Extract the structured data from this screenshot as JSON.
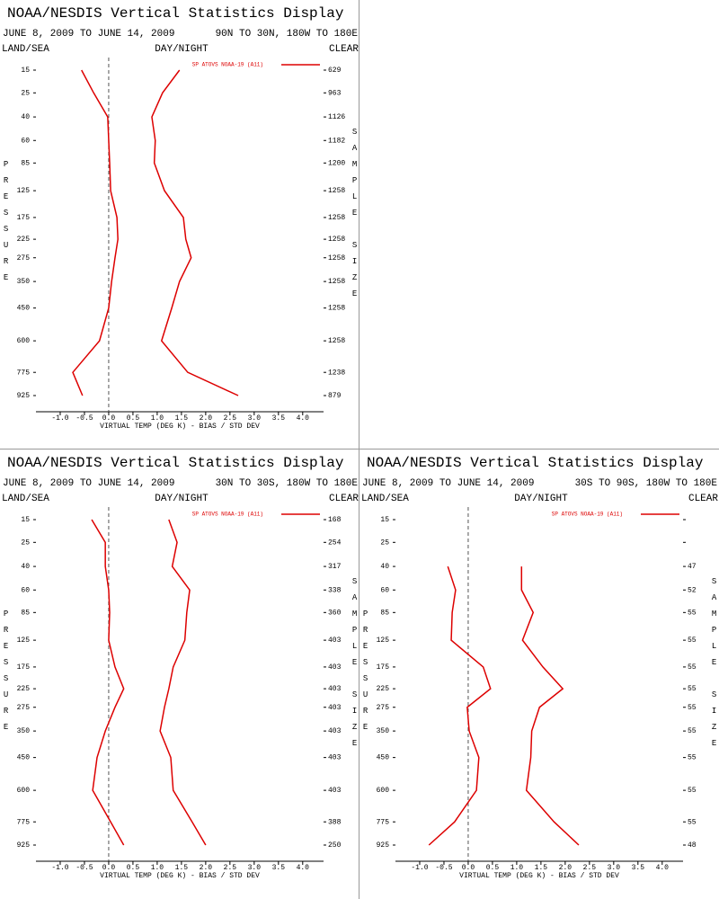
{
  "chart_data": [
    {
      "type": "line",
      "title": "NOAA/NESDIS Vertical Statistics Display",
      "subtitle": "JUNE 8, 2009 TO JUNE 14, 2009",
      "region": "90N TO 30N, 180W TO 180E",
      "land_sea": "LAND/SEA",
      "day_night": "DAY/NIGHT",
      "clear": "CLEAR",
      "ylabel": "PRESSURE",
      "y2label": "SAMPLE SIZE",
      "xlabel": "VIRTUAL TEMP (DEG K) - BIAS / STD DEV",
      "legend": "upper right",
      "y": [
        15,
        25,
        40,
        60,
        85,
        125,
        175,
        225,
        275,
        350,
        450,
        600,
        775,
        925
      ],
      "sample_size": [
        629,
        963,
        1126,
        1182,
        1200,
        1258,
        1258,
        1258,
        1258,
        1258,
        1258,
        1258,
        1238,
        879
      ],
      "series": [
        {
          "name": "SP ATOVS NOAA-19 (A11)",
          "color": "#dd0000",
          "values": [
            -0.56,
            -0.31,
            -0.02,
            0.0,
            0.02,
            0.04,
            0.17,
            0.19,
            0.13,
            0.06,
            0.0,
            -0.19,
            -0.74,
            -0.54
          ]
        },
        {
          "color": "#dd0000",
          "values": [
            1.46,
            1.11,
            0.89,
            0.96,
            0.94,
            1.15,
            1.54,
            1.59,
            1.7,
            1.46,
            1.3,
            1.09,
            1.63,
            2.67
          ]
        }
      ],
      "xlim": [
        -1.5,
        4.43
      ],
      "xticks": [
        {
          "value": -1,
          "label": "-1.0"
        },
        {
          "value": -0.5,
          "label": "-0.5"
        },
        {
          "value": 0,
          "label": "0.0"
        },
        {
          "value": 0.5,
          "label": "0.5"
        },
        {
          "value": 1,
          "label": "1.0"
        },
        {
          "value": 1.5,
          "label": "1.5"
        },
        {
          "value": 2,
          "label": "2.0"
        },
        {
          "value": 2.5,
          "label": "2.5"
        },
        {
          "value": 3,
          "label": "3.0"
        },
        {
          "value": 3.5,
          "label": "3.5"
        },
        {
          "value": 4,
          "label": "4.0"
        }
      ]
    },
    {
      "type": "line",
      "title": "NOAA/NESDIS Vertical Statistics Display",
      "subtitle": "JUNE 8, 2009 TO JUNE 14, 2009",
      "region": "30N TO 30S, 180W TO 180E",
      "land_sea": "LAND/SEA",
      "day_night": "DAY/NIGHT",
      "clear": "CLEAR",
      "ylabel": "PRESSURE",
      "y2label": "SAMPLE SIZE",
      "xlabel": "VIRTUAL TEMP (DEG K) - BIAS / STD DEV",
      "legend": "upper right",
      "y": [
        15,
        25,
        40,
        60,
        85,
        125,
        175,
        225,
        275,
        350,
        450,
        600,
        775,
        925
      ],
      "sample_size": [
        168,
        254,
        317,
        338,
        360,
        403,
        403,
        403,
        403,
        403,
        403,
        403,
        388,
        250
      ],
      "series": [
        {
          "name": "SP ATOVS NOAA-19 (A11)",
          "color": "#dd0000",
          "values": [
            -0.35,
            -0.07,
            -0.07,
            0.0,
            0.02,
            0.0,
            0.13,
            0.31,
            0.13,
            -0.07,
            -0.24,
            -0.33,
            0.04,
            0.31
          ]
        },
        {
          "color": "#dd0000",
          "values": [
            1.24,
            1.41,
            1.31,
            1.67,
            1.61,
            1.57,
            1.33,
            1.24,
            1.15,
            1.06,
            1.28,
            1.33,
            1.72,
            2.0
          ]
        }
      ],
      "xlim": [
        -1.5,
        4.43
      ],
      "xticks": [
        {
          "value": -1,
          "label": "-1.0"
        },
        {
          "value": -0.5,
          "label": "-0.5"
        },
        {
          "value": 0,
          "label": "0.0"
        },
        {
          "value": 0.5,
          "label": "0.5"
        },
        {
          "value": 1,
          "label": "1.0"
        },
        {
          "value": 1.5,
          "label": "1.5"
        },
        {
          "value": 2,
          "label": "2.0"
        },
        {
          "value": 2.5,
          "label": "2.5"
        },
        {
          "value": 3,
          "label": "3.0"
        },
        {
          "value": 3.5,
          "label": "3.5"
        },
        {
          "value": 4,
          "label": "4.0"
        }
      ]
    },
    {
      "type": "line",
      "title": "NOAA/NESDIS Vertical Statistics Display",
      "subtitle": "JUNE 8, 2009 TO JUNE 14, 2009",
      "region": "30S TO 90S, 180W TO 180E",
      "land_sea": "LAND/SEA",
      "day_night": "DAY/NIGHT",
      "clear": "CLEAR",
      "ylabel": "PRESSURE",
      "y2label": "SAMPLE SIZE",
      "xlabel": "VIRTUAL TEMP (DEG K) - BIAS / STD DEV",
      "legend": "upper right",
      "y": [
        15,
        25,
        40,
        60,
        85,
        125,
        175,
        225,
        275,
        350,
        450,
        600,
        775,
        925
      ],
      "sample_size": [
        null,
        null,
        47,
        52,
        55,
        55,
        55,
        55,
        55,
        55,
        55,
        55,
        55,
        48
      ],
      "series": [
        {
          "name": "SP ATOVS NOAA-19 (A11)",
          "color": "#dd0000",
          "values": [
            null,
            null,
            -0.42,
            -0.26,
            -0.33,
            -0.35,
            0.31,
            0.46,
            -0.02,
            0.02,
            0.22,
            0.17,
            -0.28,
            -0.81
          ]
        },
        {
          "color": "#dd0000",
          "values": [
            null,
            null,
            1.1,
            1.1,
            1.34,
            1.12,
            1.54,
            1.95,
            1.47,
            1.31,
            1.29,
            1.2,
            1.77,
            2.28
          ]
        }
      ],
      "xlim": [
        -1.5,
        4.43
      ],
      "xticks": [
        {
          "value": -1,
          "label": "-1.0"
        },
        {
          "value": -0.5,
          "label": "-0.5"
        },
        {
          "value": 0,
          "label": "0.0"
        },
        {
          "value": 0.5,
          "label": "0.5"
        },
        {
          "value": 1,
          "label": "1.0"
        },
        {
          "value": 1.5,
          "label": "1.5"
        },
        {
          "value": 2,
          "label": "2.0"
        },
        {
          "value": 2.5,
          "label": "2.5"
        },
        {
          "value": 3,
          "label": "3.0"
        },
        {
          "value": 3.5,
          "label": "3.5"
        },
        {
          "value": 4,
          "label": "4.0"
        }
      ]
    }
  ]
}
